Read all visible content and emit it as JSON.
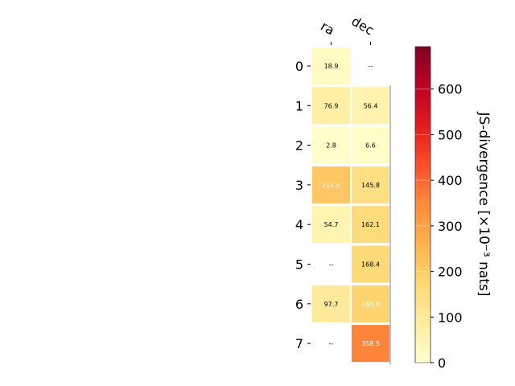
{
  "chart_data": {
    "type": "heatmap",
    "x_categories": [
      "ra",
      "dec"
    ],
    "y_categories": [
      "0",
      "1",
      "2",
      "3",
      "4",
      "5",
      "6",
      "7"
    ],
    "values": [
      [
        18.9,
        null
      ],
      [
        76.9,
        56.4
      ],
      [
        2.8,
        6.6
      ],
      [
        212.6,
        145.8
      ],
      [
        54.7,
        162.1
      ],
      [
        null,
        168.4
      ],
      [
        97.7,
        185.0
      ],
      [
        null,
        358.5
      ]
    ],
    "cell_labels": [
      [
        "18.9",
        "--"
      ],
      [
        "76.9",
        "56.4"
      ],
      [
        "2.8",
        "6.6"
      ],
      [
        "212.6",
        "145.8"
      ],
      [
        "54.7",
        "162.1"
      ],
      [
        "--",
        "168.4"
      ],
      [
        "97.7",
        "185.0"
      ],
      [
        "--",
        "358.5"
      ]
    ],
    "colorbar": {
      "label": "JS-divergence [×10⁻³ nats]",
      "ticks": [
        "0",
        "100",
        "200",
        "300",
        "400",
        "500",
        "600"
      ],
      "range": [
        0,
        693
      ],
      "colormap": "YlOrRd"
    }
  }
}
